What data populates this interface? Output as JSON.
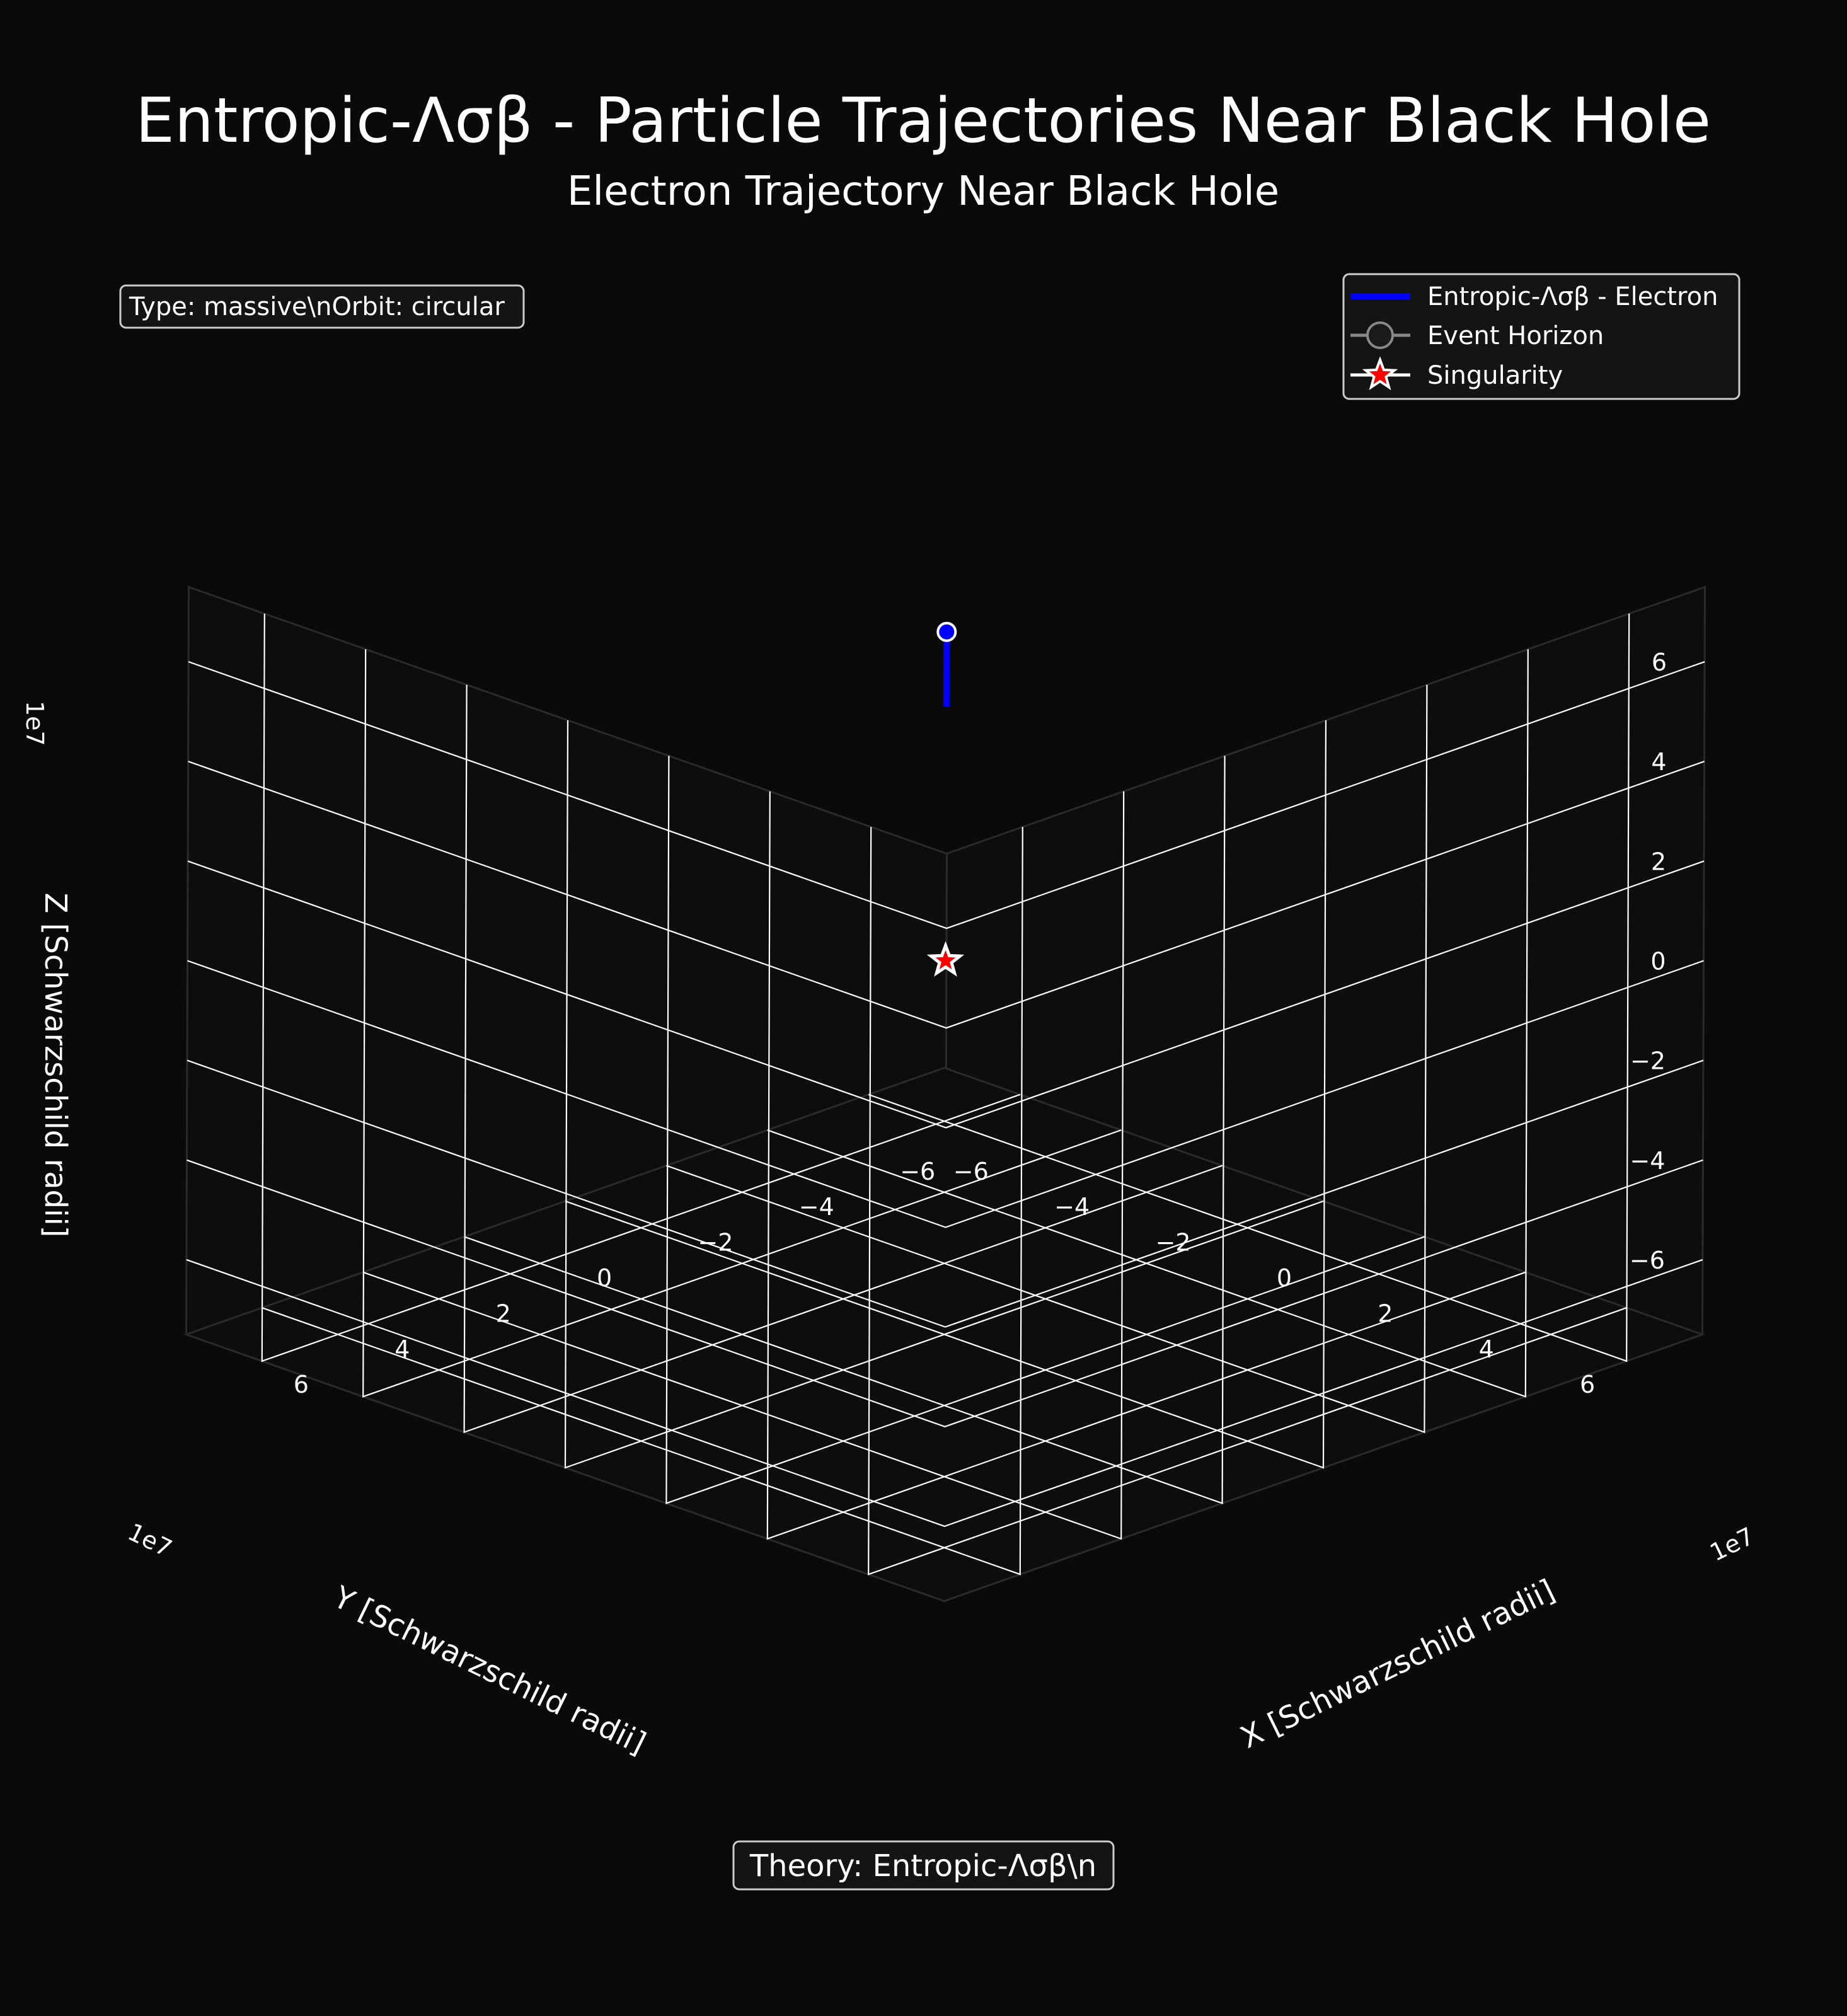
{
  "figure": {
    "suptitle": "Entropic-Λσβ - Particle Trajectories Near Black Hole",
    "subtitle": "Electron Trajectory Near Black Hole",
    "info_box": "Type: massive\\nOrbit: circular",
    "theory_box": "Theory: Entropic-Λσβ\\n",
    "colors": {
      "background": "#0a0a0a",
      "grid": "#ffffff",
      "trajectory": "#0000ff",
      "singularity": "#ff0000",
      "event_horizon": "#888888"
    }
  },
  "legend": {
    "placement": "top-right",
    "items": [
      {
        "label": "Entropic-Λσβ - Electron",
        "icon": "line-icon"
      },
      {
        "label": "Event Horizon",
        "icon": "circle-marker-icon"
      },
      {
        "label": "Singularity",
        "icon": "star-marker-icon"
      }
    ]
  },
  "chart_data": {
    "type": "line3d",
    "title": "Electron Trajectory Near Black Hole",
    "xlabel": "X [Schwarzschild radii]",
    "ylabel": "Y [Schwarzschild radii]",
    "zlabel": "Z [Schwarzschild radii]",
    "offset_text": {
      "x": "1e7",
      "y": "1e7",
      "z": "1e7"
    },
    "xlim": [
      -75000000.0,
      75000000.0
    ],
    "ylim": [
      -75000000.0,
      75000000.0
    ],
    "zlim": [
      -75000000.0,
      75000000.0
    ],
    "ticks": {
      "x": [
        -6,
        -4,
        -2,
        0,
        2,
        4,
        6
      ],
      "y": [
        -6,
        -4,
        -2,
        0,
        2,
        4,
        6
      ],
      "z": [
        -6,
        -4,
        -2,
        0,
        2,
        4,
        6
      ]
    },
    "tick_labels": {
      "x": [
        "−6",
        "−4",
        "−2",
        "0",
        "2",
        "4",
        "6"
      ],
      "y": [
        "−6",
        "−4",
        "−2",
        "0",
        "2",
        "4",
        "6"
      ],
      "z": [
        "−6",
        "−4",
        "−2",
        "0",
        "2",
        "4",
        "6"
      ]
    },
    "grid": true,
    "series": [
      {
        "name": "Entropic-Λσβ - Electron",
        "kind": "trajectory",
        "x": [
          0,
          0
        ],
        "y": [
          0,
          0
        ],
        "z": [
          51000000.0,
          66000000.0
        ],
        "start_marker": {
          "x": 0,
          "y": 0,
          "z": 66000000.0
        }
      },
      {
        "name": "Singularity",
        "kind": "marker",
        "marker": "star",
        "x": [
          0
        ],
        "y": [
          0
        ],
        "z": [
          0
        ]
      }
    ]
  }
}
